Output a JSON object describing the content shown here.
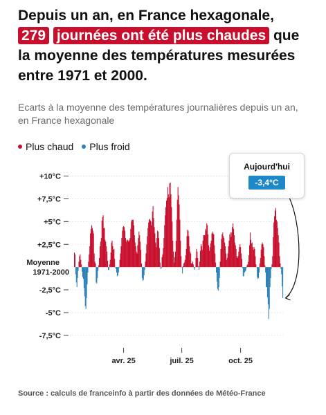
{
  "headline": {
    "part1": "Depuis un an, en France hexagonale,",
    "highlight_number": "279",
    "highlight_phrase": "journées ont été plus chaudes",
    "part2": "que la moyenne des températures mesurées entre 1971 et 2000."
  },
  "subtitle": "Ecarts à la moyenne des températures journalières depuis un an, en France hexagonale",
  "legend": [
    {
      "label": "Plus chaud",
      "color": "#c8102e"
    },
    {
      "label": "Plus froid",
      "color": "#2a7fb8"
    }
  ],
  "tooltip": {
    "label": "Aujourd'hui",
    "value": "-3,4°C"
  },
  "source": "Source : calculs de franceinfo à partir des données de Météo-France",
  "chart_data": {
    "type": "bar",
    "ylim": [
      -8.5,
      10.5
    ],
    "y_ticks": [
      {
        "value": 10,
        "label": "+10°C"
      },
      {
        "value": 7.5,
        "label": "+7,5°C"
      },
      {
        "value": 5,
        "label": "+5°C"
      },
      {
        "value": 2.5,
        "label": "+2,5°C"
      },
      {
        "value": 0,
        "label": "Moyenne 1971-2000"
      },
      {
        "value": -2.5,
        "label": "-2,5°C"
      },
      {
        "value": -5,
        "label": "-5°C"
      },
      {
        "value": -7.5,
        "label": "-7,5°C"
      }
    ],
    "x_ticks": [
      {
        "index": 77,
        "label": "avr. 25"
      },
      {
        "index": 168,
        "label": "juil. 25"
      },
      {
        "index": 260,
        "label": "oct. 25"
      }
    ],
    "colors": {
      "positive": "#c8102e",
      "negative": "#2a7fb8"
    },
    "last_value": -3.4,
    "values": [
      1.6,
      1.4,
      -0.8,
      -1.7,
      -2.2,
      -1.2,
      -0.4,
      0.6,
      1.2,
      1.4,
      0.8,
      0.3,
      -0.5,
      -1.1,
      -1.3,
      -2.3,
      -3.2,
      -4.3,
      -4.6,
      -3.4,
      -1.9,
      -0.6,
      0.6,
      1.4,
      2.3,
      3.7,
      4.2,
      4.6,
      4.3,
      4.0,
      3.7,
      1.5,
      0.6,
      0.4,
      -1.7,
      -1.8,
      -1.2,
      -0.4,
      0.2,
      1.0,
      2.3,
      2.8,
      3.2,
      5.1,
      5.5,
      5.7,
      4.3,
      4.3,
      3.0,
      2.8,
      2.3,
      1.7,
      0.7,
      -0.3,
      -0.3,
      0.3,
      0.8,
      1.6,
      2.7,
      2.9,
      2.3,
      1.9,
      2.0,
      0.9,
      0.0,
      -0.2,
      -0.6,
      -1.0,
      -0.9,
      -0.6,
      -0.1,
      0.8,
      1.5,
      2.3,
      3.2,
      4.0,
      4.4,
      4.5,
      4.4,
      4.0,
      3.2,
      2.8,
      3.0,
      3.0,
      2.9,
      2.8,
      3.0,
      3.2,
      4.2,
      5.0,
      5.2,
      5.2,
      5.2,
      4.6,
      3.5,
      2.7,
      2.3,
      1.7,
      1.5,
      2.4,
      3.2,
      3.9,
      3.5,
      2.8,
      1.9,
      0.4,
      -1.2,
      -1.5,
      -1.4,
      -0.9,
      -0.3,
      0.6,
      1.5,
      2.5,
      3.4,
      4.3,
      4.9,
      5.2,
      5.3,
      5.1,
      4.6,
      5.0,
      6.1,
      6.7,
      5.4,
      4.4,
      3.7,
      2.7,
      2.2,
      3.2,
      4.0,
      3.9,
      3.2,
      2.1,
      0.5,
      -0.2,
      -0.1,
      1.1,
      1.4,
      2.1,
      3.2,
      4.6,
      5.7,
      6.6,
      7.3,
      7.6,
      8.8,
      8.0,
      7.7,
      9.2,
      9.3,
      8.0,
      6.6,
      5.0,
      2.9,
      1.7,
      0.5,
      1.1,
      1.7,
      2.9,
      5.2,
      7.4,
      8.8,
      7.9,
      6.9,
      5.2,
      2.9,
      1.2,
      0.0,
      -0.7,
      0.1,
      0.4,
      0.5,
      0.8,
      1.3,
      2.0,
      3.4,
      4.1,
      4.0,
      3.4,
      2.3,
      1.7,
      1.5,
      0.4,
      0.4,
      0.6,
      0.3,
      -0.1,
      -0.3,
      0.0,
      1.0,
      2.0,
      1.7,
      1.0,
      0.1,
      -0.3,
      0.6,
      1.8,
      2.5,
      2.3,
      1.9,
      2.9,
      3.5,
      3.5,
      3.5,
      4.2,
      4.0,
      4.8,
      4.6,
      3.6,
      2.4,
      1.8,
      2.2,
      2.6,
      2.9,
      3.7,
      3.9,
      3.7,
      3.6,
      2.4,
      1.5,
      0.5,
      -0.6,
      -1.6,
      -2.4,
      -2.6,
      -2.2,
      -1.2,
      0.6,
      2.0,
      3.1,
      3.6,
      3.8,
      3.4,
      3.2,
      2.7,
      2.3,
      1.5,
      0.8,
      1.0,
      1.5,
      2.3,
      2.9,
      3.6,
      3.8,
      3.3,
      3.8,
      4.4,
      4.8,
      4.2,
      3.5,
      2.7,
      2.4,
      2.0,
      1.2,
      1.0,
      1.2,
      1.7,
      2.2,
      2.5,
      2.2,
      1.5,
      0.9,
      -0.1,
      -1.0,
      -1.0,
      -0.6,
      -0.5,
      -0.4,
      -0.1,
      0.2,
      0.3,
      0.6,
      1.3,
      2.4,
      3.8,
      3.0,
      2.6,
      2.7,
      2.2,
      1.9,
      2.2,
      2.0,
      1.2,
      0.3,
      0.0,
      -1.1,
      -1.3,
      -1.2,
      -0.6,
      0.4,
      1.0,
      1.9,
      2.5,
      2.7,
      2.5,
      2.2,
      1.2,
      0.2,
      -0.6,
      -2.2,
      -2.2,
      -3.3,
      -4.1,
      -5.7,
      -4.6,
      -2.2,
      -1.2,
      -0.2,
      0.3,
      1.2,
      3.3,
      4.9,
      5.6,
      6.2,
      6.5,
      5.2,
      5.0,
      4.3,
      3.5,
      2.7,
      1.2,
      0.4,
      -0.2,
      -0.8,
      -2.1,
      -3.4
    ]
  }
}
